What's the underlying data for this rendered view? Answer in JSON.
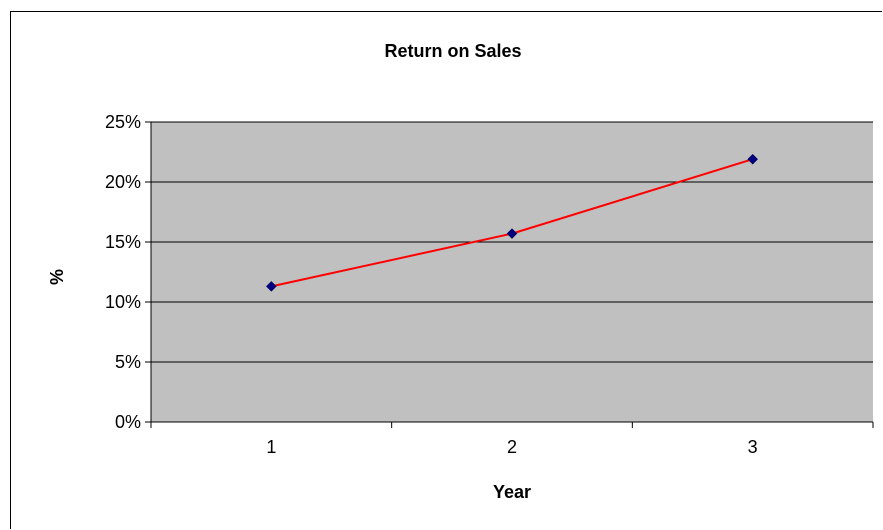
{
  "chart_data": {
    "type": "line",
    "title": "Return on Sales",
    "xlabel": "Year",
    "ylabel": "%",
    "categories": [
      "1",
      "2",
      "3"
    ],
    "series": [
      {
        "values": [
          11.3,
          15.7,
          21.9
        ],
        "line_color": "#ff0000",
        "marker_color": "#000080"
      }
    ],
    "ylim": [
      0,
      25
    ],
    "yticks": [
      "0%",
      "5%",
      "10%",
      "15%",
      "20%",
      "25%"
    ],
    "ytick_values": [
      0,
      5,
      10,
      15,
      20,
      25
    ],
    "grid": true,
    "legend": "none",
    "plot_background": "#c0c0c0"
  }
}
